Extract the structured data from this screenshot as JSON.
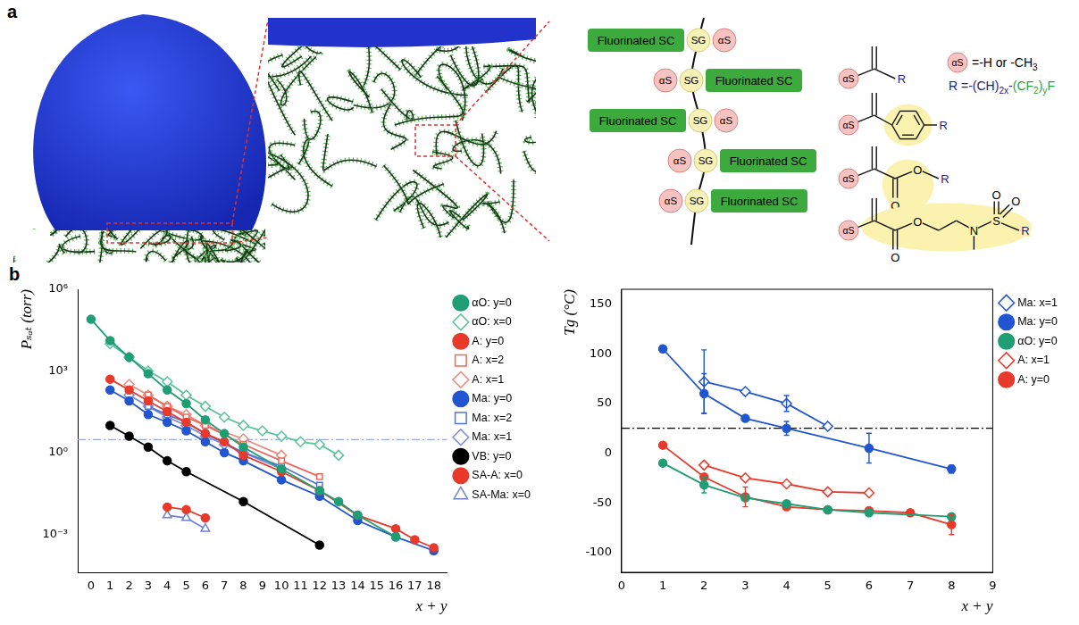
{
  "panel_a": {
    "label": "a",
    "chain_rows": [
      [
        "Fluorinated SC",
        "SG",
        "αS"
      ],
      [
        "αS",
        "SG",
        "Fluorinated SC"
      ],
      [
        "Fluorinated SC",
        "SG",
        "αS"
      ],
      [
        "αS",
        "SG",
        "Fluorinated SC"
      ],
      [
        "αS",
        "SG",
        "Fluorinated SC"
      ]
    ],
    "key": {
      "symbol": "αS",
      "symbol_text": [
        {
          "text": "=-H or -CH"
        },
        {
          "text": "3",
          "sub": true
        }
      ],
      "r_text": [
        {
          "text": "R =-(CH)"
        },
        {
          "text": "2x",
          "sub": true
        },
        {
          "text": "-"
        },
        {
          "text": "(CF",
          "color": "#2e9e2e"
        },
        {
          "text": "2",
          "sub": true,
          "color": "#2e9e2e"
        },
        {
          "text": ")",
          "color": "#2e9e2e"
        },
        {
          "text": "y",
          "sub": true,
          "color": "#2e9e2e"
        },
        {
          "text": "F",
          "color": "#2e9e2e"
        }
      ]
    },
    "structures": [
      {
        "alpha": "αS",
        "end": "R",
        "atoms": []
      },
      {
        "alpha": "αS",
        "end": "R",
        "atoms": []
      },
      {
        "alpha": "αS",
        "end": "R",
        "atoms": [
          "O",
          "O"
        ]
      },
      {
        "alpha": "αS",
        "end": "R",
        "atoms": [
          "O",
          "O",
          "N",
          "S",
          "O",
          "O"
        ]
      }
    ]
  },
  "panel_b": {
    "label": "b"
  },
  "chart_data": [
    {
      "type": "line",
      "log": "y",
      "grid": false,
      "legend": "right",
      "xlabel": "x + y",
      "ylabel": "Pₛₐₜ (torr)",
      "xlim": [
        -0.7,
        18.7
      ],
      "xticks": [
        0,
        1,
        2,
        3,
        4,
        5,
        6,
        7,
        8,
        9,
        10,
        11,
        12,
        13,
        14,
        15,
        16,
        17,
        18
      ],
      "ylim": [
        4e-05,
        1000000
      ],
      "yticks": [
        {
          "value": 0.001,
          "label": "10⁻³"
        },
        {
          "value": 1,
          "label": "10⁰"
        },
        {
          "value": 1000,
          "label": "10³"
        },
        {
          "value": 1000000,
          "label": "10⁶"
        }
      ],
      "reference_lines": [
        {
          "value": 3,
          "color": "#9aa8e0",
          "line_style": "dashdot"
        }
      ],
      "series": [
        {
          "name": "αO: y=0",
          "color": "#1f9e73",
          "marker": "circle",
          "x": [
            0,
            1,
            2,
            3,
            4,
            5,
            6,
            7,
            8,
            10,
            12,
            13,
            14,
            16
          ],
          "values": [
            79000,
            13000,
            3200,
            790,
            200,
            63,
            16,
            5,
            1.6,
            0.25,
            0.04,
            0.016,
            0.005,
            0.0008
          ]
        },
        {
          "name": "αO: x=0",
          "color": "#5cc29a",
          "marker": "open_diamond",
          "x": [
            1,
            2,
            3,
            4,
            5,
            6,
            7,
            8,
            9,
            10,
            11,
            12,
            13
          ],
          "values": [
            10000,
            3200,
            1000,
            400,
            130,
            50,
            20,
            10,
            6.3,
            4,
            2.5,
            2,
            0.8
          ]
        },
        {
          "name": "A: y=0",
          "color": "#e8392b",
          "marker": "circle",
          "x": [
            1,
            2,
            3,
            4,
            5,
            6,
            7,
            8,
            10,
            12,
            14,
            16,
            17,
            18
          ],
          "values": [
            500,
            200,
            79,
            32,
            13,
            5,
            2.5,
            0.8,
            0.2,
            0.04,
            0.005,
            0.0016,
            0.00063,
            0.00032
          ]
        },
        {
          "name": "A: x=2",
          "color": "#e8695c",
          "marker": "open_square",
          "x": [
            3,
            4,
            5,
            6,
            8,
            10,
            12
          ],
          "values": [
            130,
            50,
            20,
            10,
            2,
            0.5,
            0.13
          ]
        },
        {
          "name": "A: x=1",
          "color": "#ec8a7f",
          "marker": "open_diamond",
          "x": [
            2,
            3,
            4,
            5,
            6,
            8,
            10
          ],
          "values": [
            320,
            130,
            50,
            25,
            10,
            3.2,
            0.8
          ]
        },
        {
          "name": "Ma: y=0",
          "color": "#2255d0",
          "marker": "circle",
          "x": [
            1,
            2,
            3,
            4,
            5,
            6,
            7,
            8,
            10,
            12,
            14,
            16,
            18
          ],
          "values": [
            200,
            79,
            25,
            13,
            6.3,
            2.5,
            1,
            0.5,
            0.1,
            0.025,
            0.0032,
            0.0008,
            0.00025
          ]
        },
        {
          "name": "Ma: x=2",
          "color": "#5572d6",
          "marker": "open_square",
          "x": [
            3,
            4,
            5,
            6,
            8,
            10,
            12
          ],
          "values": [
            50,
            25,
            13,
            5,
            1,
            0.32,
            0.063
          ]
        },
        {
          "name": "Ma: x=1",
          "color": "#7d8ddb",
          "marker": "open_diamond",
          "x": [
            2,
            3,
            4,
            5,
            6,
            7,
            8,
            10
          ],
          "values": [
            130,
            50,
            20,
            10,
            4,
            2,
            1,
            0.25
          ]
        },
        {
          "name": "VB: y=0",
          "color": "#000000",
          "marker": "circle",
          "x": [
            1,
            2,
            3,
            4,
            5,
            8,
            12
          ],
          "values": [
            10,
            4,
            1.6,
            0.5,
            0.2,
            0.016,
            0.0004
          ]
        },
        {
          "name": "SA-A: x=0",
          "color": "#e8392b",
          "marker": "circle",
          "x": [
            4,
            5,
            6
          ],
          "values": [
            0.01,
            0.008,
            0.004
          ]
        },
        {
          "name": "SA-Ma: x=0",
          "color": "#6f7fd6",
          "marker": "open_triangle",
          "x": [
            4,
            5,
            6
          ],
          "values": [
            0.005,
            0.004,
            0.0016
          ]
        }
      ]
    },
    {
      "type": "line",
      "grid": false,
      "legend": "right",
      "xlabel": "x + y",
      "ylabel": "Tg (°C)",
      "xlim": [
        0,
        9
      ],
      "xticks": [
        0,
        1,
        2,
        3,
        4,
        5,
        6,
        7,
        8,
        9
      ],
      "ylim": [
        -120,
        165
      ],
      "yticks": [
        -100,
        -50,
        0,
        50,
        100,
        150
      ],
      "reference_lines": [
        {
          "value": 25,
          "color": "#000000",
          "line_style": "dashdot"
        }
      ],
      "series": [
        {
          "name": "Ma: x=1",
          "color": "#2255d0",
          "marker": "open_diamond",
          "x": [
            2,
            3,
            4,
            5
          ],
          "values": [
            72,
            62,
            50,
            27
          ],
          "errors": [
            32,
            null,
            8,
            null
          ]
        },
        {
          "name": "Ma: y=0",
          "color": "#2255d0",
          "marker": "circle",
          "x": [
            1,
            2,
            3,
            4,
            6,
            8
          ],
          "values": [
            105,
            60,
            35,
            25,
            5,
            -16
          ],
          "errors": [
            null,
            20,
            null,
            7,
            15,
            4
          ]
        },
        {
          "name": "αO: y=0",
          "color": "#1f9e73",
          "marker": "circle",
          "x": [
            1,
            2,
            3,
            4,
            5,
            6,
            8
          ],
          "values": [
            -10,
            -32,
            -45,
            -51,
            -57,
            -60,
            -64
          ],
          "errors": [
            null,
            8,
            null,
            null,
            null,
            null,
            null
          ]
        },
        {
          "name": "A: x=1",
          "color": "#e8392b",
          "marker": "open_diamond",
          "x": [
            2,
            3,
            4,
            5,
            6
          ],
          "values": [
            -12,
            -25,
            -31,
            -39,
            -40
          ]
        },
        {
          "name": "A: y=0",
          "color": "#e8392b",
          "marker": "circle",
          "x": [
            1,
            2,
            3,
            4,
            5,
            6,
            7,
            8
          ],
          "values": [
            8,
            -24,
            -44,
            -54,
            -57,
            -58,
            -60,
            -72
          ],
          "errors": [
            null,
            null,
            10,
            null,
            null,
            null,
            null,
            10
          ]
        }
      ]
    }
  ]
}
